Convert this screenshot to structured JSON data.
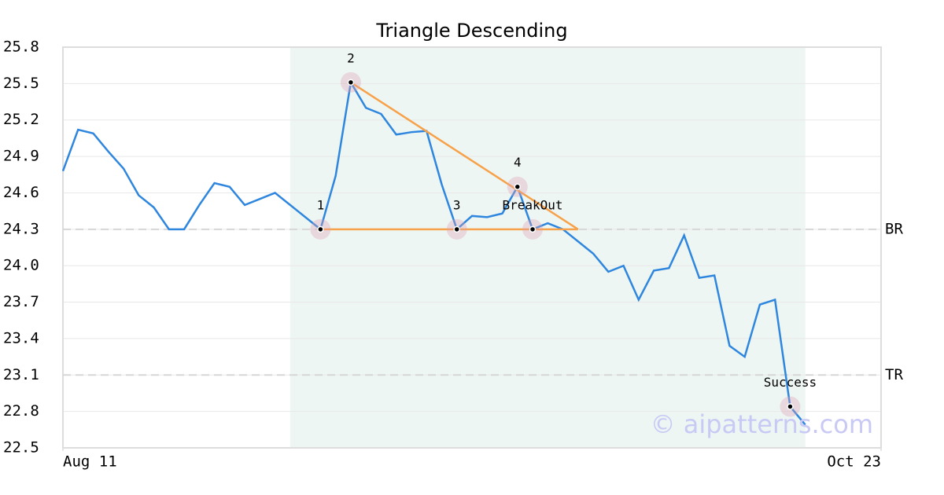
{
  "chart_data": {
    "type": "line",
    "title": "Triangle Descending",
    "x": [
      0,
      1,
      2,
      3,
      4,
      5,
      6,
      7,
      8,
      9,
      10,
      11,
      12,
      13,
      14,
      15,
      16,
      17,
      18,
      19,
      20,
      21,
      22,
      23,
      24,
      25,
      26,
      27,
      28,
      29,
      30,
      31,
      32,
      33,
      34,
      35,
      36,
      37,
      38,
      39,
      40,
      41,
      42,
      43,
      44,
      45,
      46,
      47,
      48,
      49
    ],
    "values": [
      24.78,
      25.12,
      25.09,
      24.94,
      24.8,
      24.58,
      24.48,
      24.3,
      24.3,
      24.5,
      24.68,
      24.65,
      24.5,
      24.55,
      24.6,
      24.5,
      24.4,
      24.3,
      24.74,
      25.51,
      25.3,
      25.25,
      25.08,
      25.1,
      25.11,
      24.67,
      24.3,
      24.41,
      24.4,
      24.43,
      24.65,
      24.3,
      24.35,
      24.3,
      24.2,
      24.1,
      23.95,
      24.0,
      23.72,
      23.96,
      23.98,
      24.25,
      23.9,
      23.92,
      23.34,
      23.25,
      23.68,
      23.72,
      22.84,
      22.69
    ],
    "color": "#2e86de",
    "xlim": [
      0,
      54
    ],
    "xticks": [
      {
        "value": 0,
        "label": "Aug 11"
      },
      {
        "value": 54,
        "label": "Oct 23"
      }
    ],
    "ylim": [
      22.5,
      25.8
    ],
    "yticks": [
      22.5,
      22.8,
      23.1,
      23.4,
      23.7,
      {
        "value": 24,
        "label": "24.0"
      },
      24.3,
      24.6,
      24.9,
      25.2,
      25.5,
      25.8
    ],
    "grid": true,
    "highlight": {
      "x": [
        15,
        49
      ],
      "color": "#eef6f3"
    },
    "points": [
      {
        "label": "1",
        "x": 17,
        "y": 24.3
      },
      {
        "label": "2",
        "x": 19,
        "y": 25.51
      },
      {
        "label": "3",
        "x": 26,
        "y": 24.3
      },
      {
        "label": "4",
        "x": 30,
        "y": 24.65
      },
      {
        "label": "BreakOut",
        "x": 31,
        "y": 24.3
      },
      {
        "label": "Success",
        "x": 48,
        "y": 22.84
      }
    ],
    "trendlines": {
      "color": "#f7a24a",
      "lines": [
        {
          "x": [
            17,
            34
          ],
          "y": [
            24.3,
            24.3
          ]
        },
        {
          "x": [
            19,
            34
          ],
          "y": [
            25.51,
            24.3
          ]
        }
      ]
    },
    "levels": [
      {
        "label": "BR",
        "value": 24.3
      },
      {
        "label": "TR",
        "value": 23.1
      }
    ],
    "watermark": "© aipatterns.com"
  }
}
